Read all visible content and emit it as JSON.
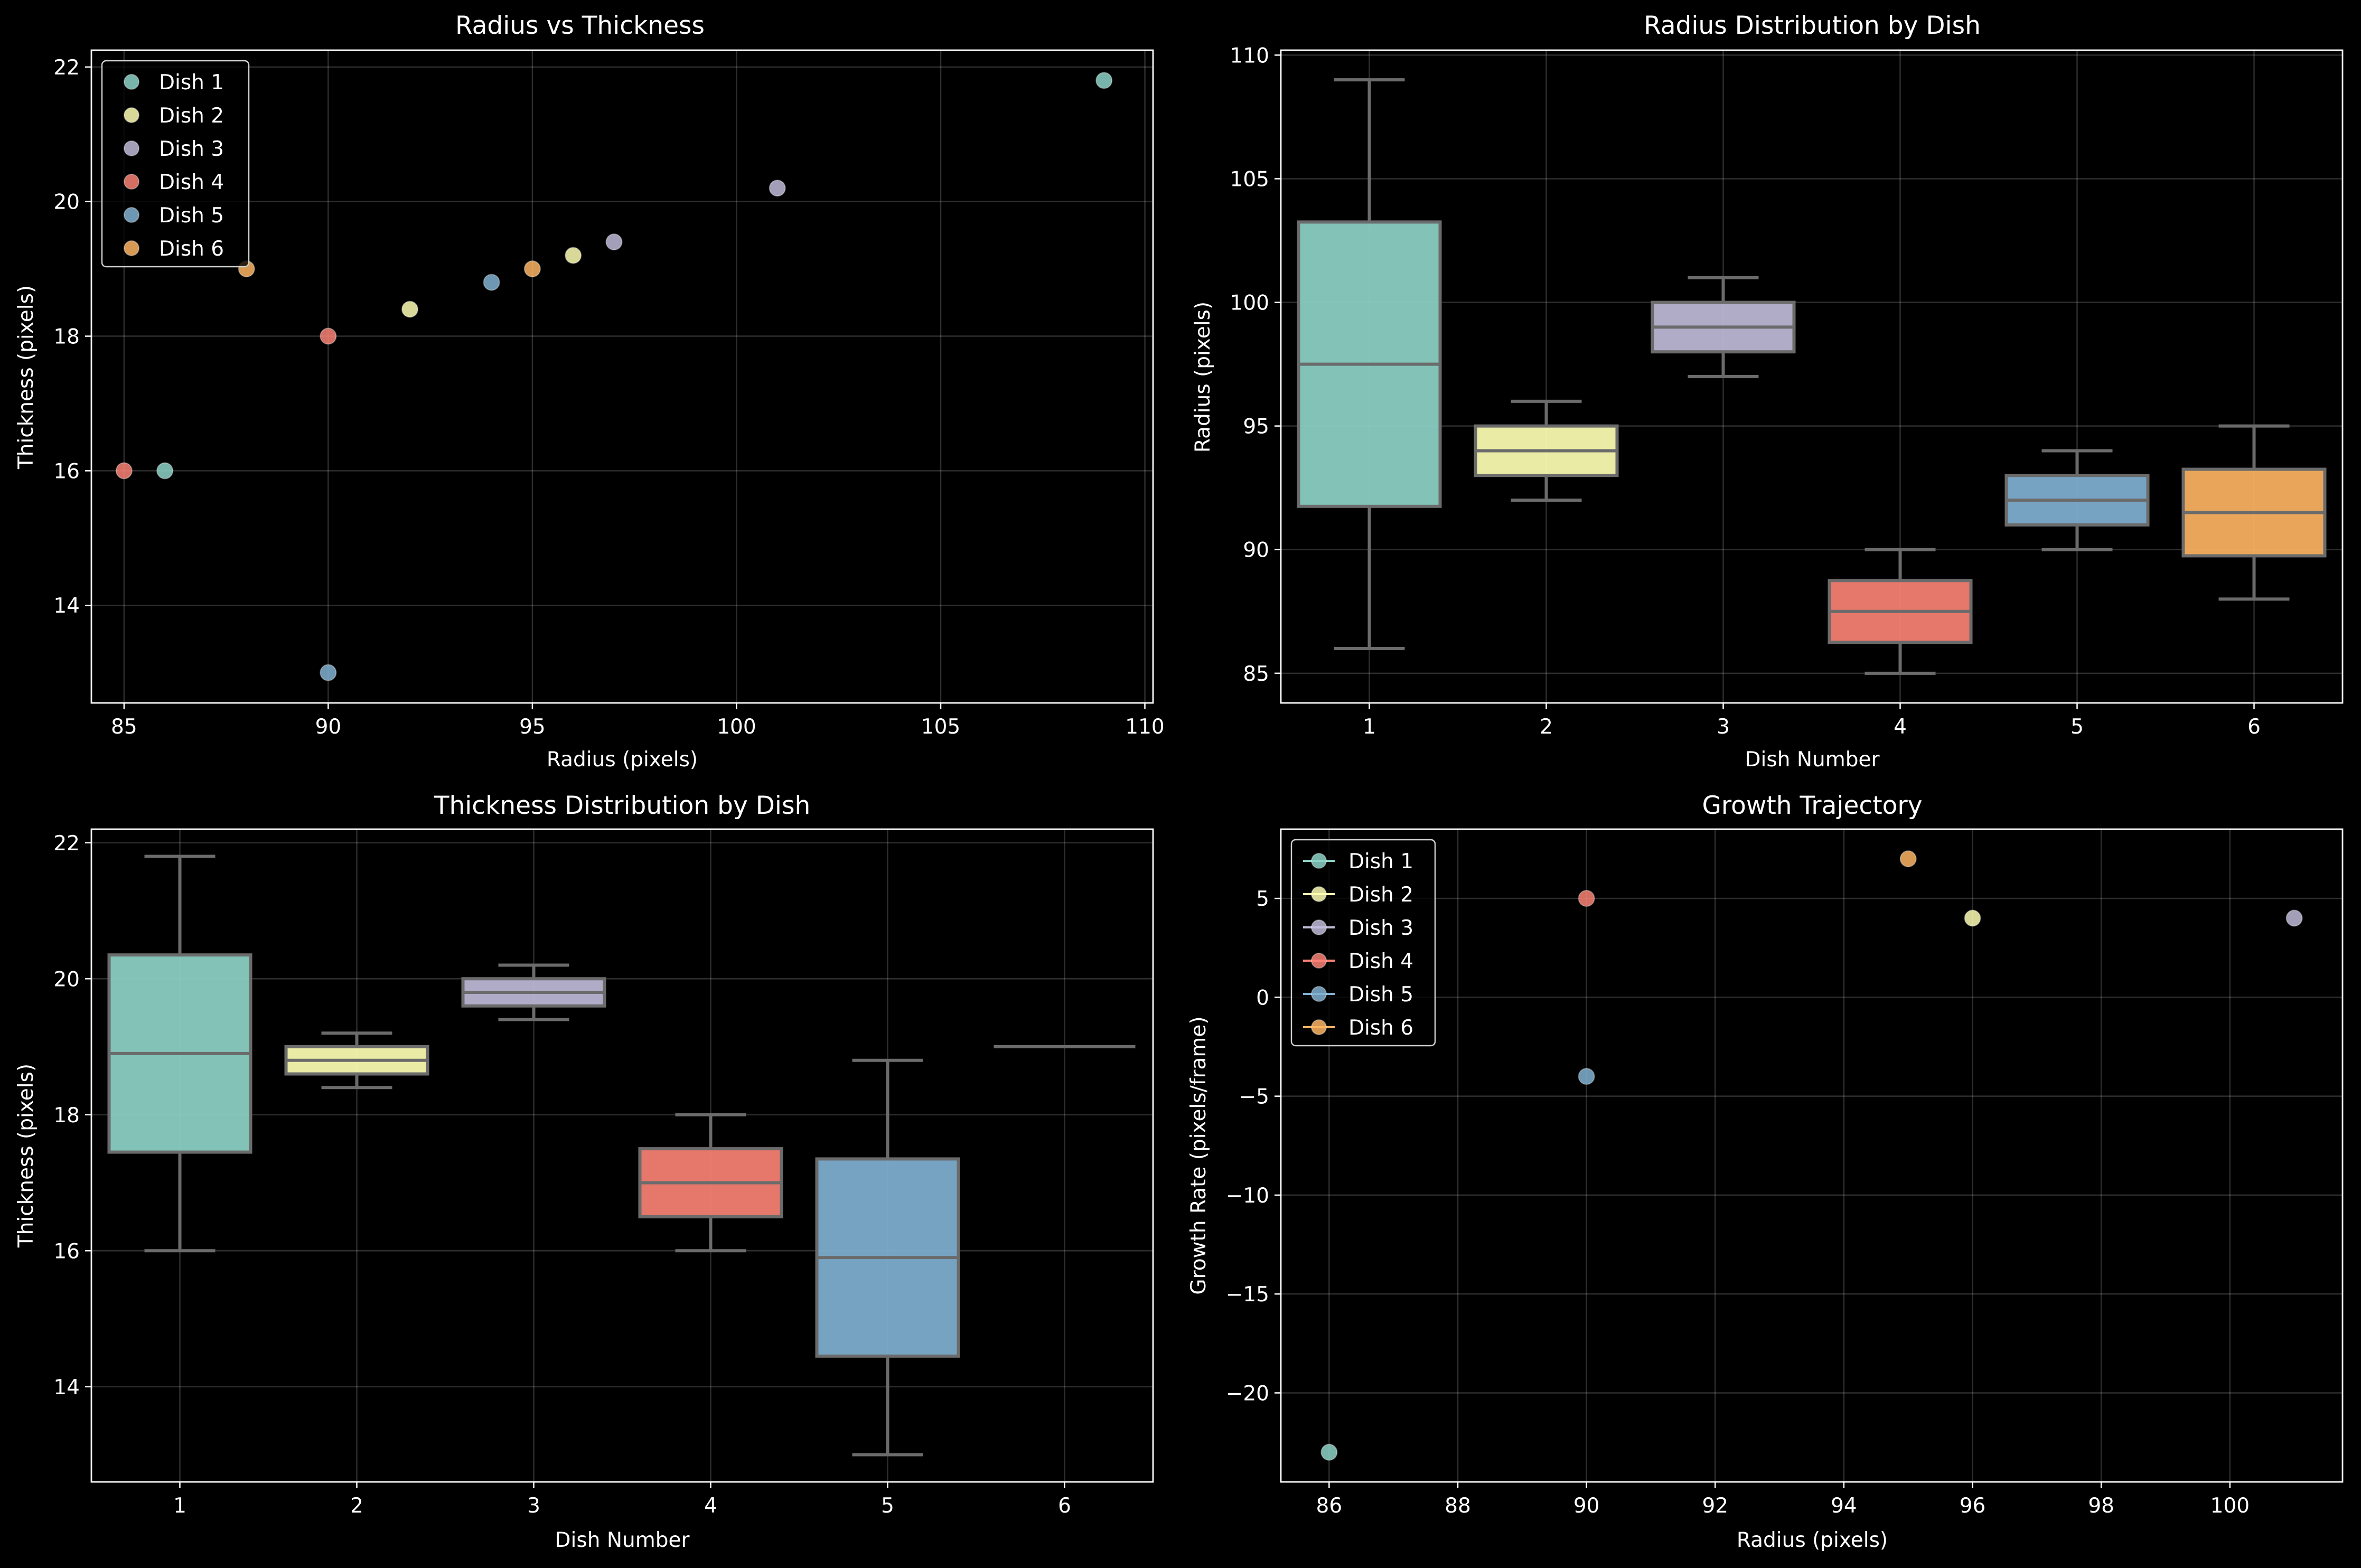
{
  "colors": {
    "dish_1": "#8dd3c7",
    "dish_2": "#feffb3",
    "dish_3": "#bfbbd9",
    "dish_4": "#fa8174",
    "dish_5": "#81b1d2",
    "dish_6": "#fdb462"
  },
  "chart_data": [
    {
      "id": "radius_vs_thickness",
      "type": "scatter",
      "title": "Radius vs Thickness",
      "xlabel": "Radius (pixels)",
      "ylabel": "Thickness (pixels)",
      "xlim": [
        84.2,
        110.2
      ],
      "ylim": [
        12.55,
        22.25
      ],
      "xticks": [
        85,
        90,
        95,
        100,
        105,
        110
      ],
      "yticks": [
        14,
        16,
        18,
        20,
        22
      ],
      "grid": true,
      "legend_position": "upper-left",
      "series": [
        {
          "name": "Dish 1",
          "color_key": "dish_1",
          "points": [
            [
              86,
              16
            ],
            [
              109,
              21.8
            ]
          ]
        },
        {
          "name": "Dish 2",
          "color_key": "dish_2",
          "points": [
            [
              92,
              18.4
            ],
            [
              96,
              19.2
            ]
          ]
        },
        {
          "name": "Dish 3",
          "color_key": "dish_3",
          "points": [
            [
              97,
              19.4
            ],
            [
              101,
              20.2
            ]
          ]
        },
        {
          "name": "Dish 4",
          "color_key": "dish_4",
          "points": [
            [
              85,
              16
            ],
            [
              90,
              18
            ]
          ]
        },
        {
          "name": "Dish 5",
          "color_key": "dish_5",
          "points": [
            [
              90,
              13
            ],
            [
              94,
              18.8
            ]
          ]
        },
        {
          "name": "Dish 6",
          "color_key": "dish_6",
          "points": [
            [
              88,
              19
            ],
            [
              95,
              19
            ]
          ]
        }
      ]
    },
    {
      "id": "radius_distribution",
      "type": "box",
      "title": "Radius Distribution by Dish",
      "xlabel": "Dish Number",
      "ylabel": "Radius (pixels)",
      "ylim": [
        83.8,
        110.2
      ],
      "yticks": [
        85,
        90,
        95,
        100,
        105,
        110
      ],
      "categories": [
        "1",
        "2",
        "3",
        "4",
        "5",
        "6"
      ],
      "grid": true,
      "boxes": [
        {
          "category": "1",
          "color_key": "dish_1",
          "whisker_low": 86,
          "q1": 91.75,
          "median": 97.5,
          "q3": 103.25,
          "whisker_high": 109
        },
        {
          "category": "2",
          "color_key": "dish_2",
          "whisker_low": 92,
          "q1": 93,
          "median": 94,
          "q3": 95,
          "whisker_high": 96
        },
        {
          "category": "3",
          "color_key": "dish_3",
          "whisker_low": 97,
          "q1": 98,
          "median": 99,
          "q3": 100,
          "whisker_high": 101
        },
        {
          "category": "4",
          "color_key": "dish_4",
          "whisker_low": 85,
          "q1": 86.25,
          "median": 87.5,
          "q3": 88.75,
          "whisker_high": 90
        },
        {
          "category": "5",
          "color_key": "dish_5",
          "whisker_low": 90,
          "q1": 91,
          "median": 92,
          "q3": 93,
          "whisker_high": 94
        },
        {
          "category": "6",
          "color_key": "dish_6",
          "whisker_low": 88,
          "q1": 89.75,
          "median": 91.5,
          "q3": 93.25,
          "whisker_high": 95
        }
      ]
    },
    {
      "id": "thickness_distribution",
      "type": "box",
      "title": "Thickness Distribution by Dish",
      "xlabel": "Dish Number",
      "ylabel": "Thickness (pixels)",
      "ylim": [
        12.6,
        22.2
      ],
      "yticks": [
        14,
        16,
        18,
        20,
        22
      ],
      "categories": [
        "1",
        "2",
        "3",
        "4",
        "5",
        "6"
      ],
      "grid": true,
      "boxes": [
        {
          "category": "1",
          "color_key": "dish_1",
          "whisker_low": 16,
          "q1": 17.45,
          "median": 18.9,
          "q3": 20.35,
          "whisker_high": 21.8
        },
        {
          "category": "2",
          "color_key": "dish_2",
          "whisker_low": 18.4,
          "q1": 18.6,
          "median": 18.8,
          "q3": 19,
          "whisker_high": 19.2
        },
        {
          "category": "3",
          "color_key": "dish_3",
          "whisker_low": 19.4,
          "q1": 19.6,
          "median": 19.8,
          "q3": 20,
          "whisker_high": 20.2
        },
        {
          "category": "4",
          "color_key": "dish_4",
          "whisker_low": 16,
          "q1": 16.5,
          "median": 17,
          "q3": 17.5,
          "whisker_high": 18
        },
        {
          "category": "5",
          "color_key": "dish_5",
          "whisker_low": 13,
          "q1": 14.45,
          "median": 15.9,
          "q3": 17.35,
          "whisker_high": 18.8
        },
        {
          "category": "6",
          "color_key": "dish_6",
          "whisker_low": 19,
          "q1": 19,
          "median": 19,
          "q3": 19,
          "whisker_high": 19
        }
      ]
    },
    {
      "id": "growth_trajectory",
      "type": "line",
      "title": "Growth Trajectory",
      "xlabel": "Radius (pixels)",
      "ylabel": "Growth Rate (pixels/frame)",
      "xlim": [
        85.25,
        101.75
      ],
      "ylim": [
        -24.5,
        8.5
      ],
      "xticks": [
        86,
        88,
        90,
        92,
        94,
        96,
        98,
        100
      ],
      "yticks": [
        -20,
        -15,
        -10,
        -5,
        0,
        5
      ],
      "grid": true,
      "legend_position": "upper-left",
      "series": [
        {
          "name": "Dish 1",
          "color_key": "dish_1",
          "points": [
            [
              86,
              -23
            ]
          ]
        },
        {
          "name": "Dish 2",
          "color_key": "dish_2",
          "points": [
            [
              96,
              4
            ]
          ]
        },
        {
          "name": "Dish 3",
          "color_key": "dish_3",
          "points": [
            [
              101,
              4
            ]
          ]
        },
        {
          "name": "Dish 4",
          "color_key": "dish_4",
          "points": [
            [
              90,
              5
            ]
          ]
        },
        {
          "name": "Dish 5",
          "color_key": "dish_5",
          "points": [
            [
              90,
              -4
            ]
          ]
        },
        {
          "name": "Dish 6",
          "color_key": "dish_6",
          "points": [
            [
              95,
              7
            ]
          ]
        }
      ]
    }
  ]
}
